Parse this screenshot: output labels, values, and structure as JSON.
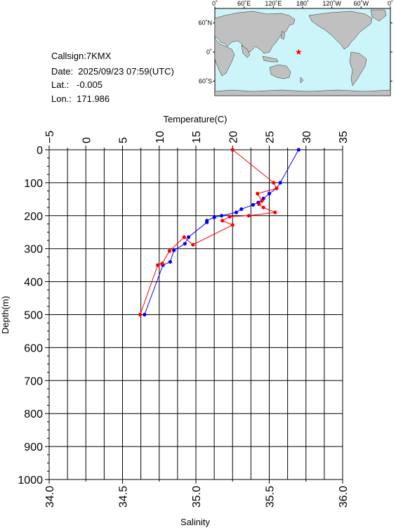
{
  "station": {
    "callsign": "Callsign:7KMX",
    "date": "Date:  2025/09/23 07:59(UTC)",
    "lat": "Lat.:   -0.005",
    "lon": "Lon.:  171.986"
  },
  "map": {
    "top_ticks": [
      "0˚",
      "60˚E",
      "120˚E",
      "180˚",
      "120˚W",
      "60˚W",
      "0˚"
    ],
    "lat_ticks": [
      "60˚N",
      "0˚",
      "60˚S"
    ],
    "marker_lat": -0.005,
    "marker_lon": 171.986,
    "colors": {
      "ocean": "#ccf5fa",
      "land": "#c0c0c0",
      "marker": "#ff0000"
    }
  },
  "chart_data": {
    "type": "line",
    "title": "",
    "ylabel": "Depth(m)",
    "ylim": [
      0,
      1000
    ],
    "y_inverted": true,
    "yticks": [
      "0",
      "100",
      "200",
      "300",
      "400",
      "500",
      "600",
      "700",
      "800",
      "900",
      "1000"
    ],
    "top_axis": {
      "label": "Temperature(C)",
      "lim": [
        -5,
        35
      ],
      "ticks": [
        "−5",
        "0",
        "5",
        "10",
        "15",
        "20",
        "25",
        "30",
        "35"
      ]
    },
    "bottom_axis": {
      "label": "Salinity",
      "lim": [
        34.0,
        36.0
      ],
      "ticks": [
        "34.0",
        "34.5",
        "35.0",
        "35.5",
        "36.0"
      ]
    },
    "grid": true,
    "series": [
      {
        "axis": "top",
        "color": "#0000ff",
        "points": [
          [
            29.0,
            0
          ],
          [
            26.5,
            100
          ],
          [
            26.0,
            117
          ],
          [
            25.0,
            133
          ],
          [
            24.2,
            148
          ],
          [
            23.5,
            160
          ],
          [
            22.8,
            167
          ],
          [
            21.2,
            180
          ],
          [
            20.5,
            190
          ],
          [
            18.5,
            200
          ],
          [
            17.5,
            205
          ],
          [
            16.5,
            215
          ],
          [
            16.5,
            220
          ],
          [
            14.0,
            265
          ],
          [
            13.5,
            285
          ],
          [
            12.0,
            305
          ],
          [
            11.5,
            340
          ],
          [
            10.5,
            350
          ],
          [
            8.0,
            500
          ]
        ]
      },
      {
        "axis": "bottom",
        "color": "#ff0000",
        "points": [
          [
            35.25,
            0
          ],
          [
            35.53,
            100
          ],
          [
            35.55,
            117
          ],
          [
            35.42,
            133
          ],
          [
            35.45,
            155
          ],
          [
            35.43,
            165
          ],
          [
            35.46,
            175
          ],
          [
            35.54,
            190
          ],
          [
            35.36,
            200
          ],
          [
            35.23,
            203
          ],
          [
            35.18,
            215
          ],
          [
            35.25,
            228
          ],
          [
            34.98,
            288
          ],
          [
            34.92,
            265
          ],
          [
            34.82,
            307
          ],
          [
            34.77,
            345
          ],
          [
            34.74,
            350
          ],
          [
            34.62,
            500
          ]
        ]
      }
    ]
  }
}
